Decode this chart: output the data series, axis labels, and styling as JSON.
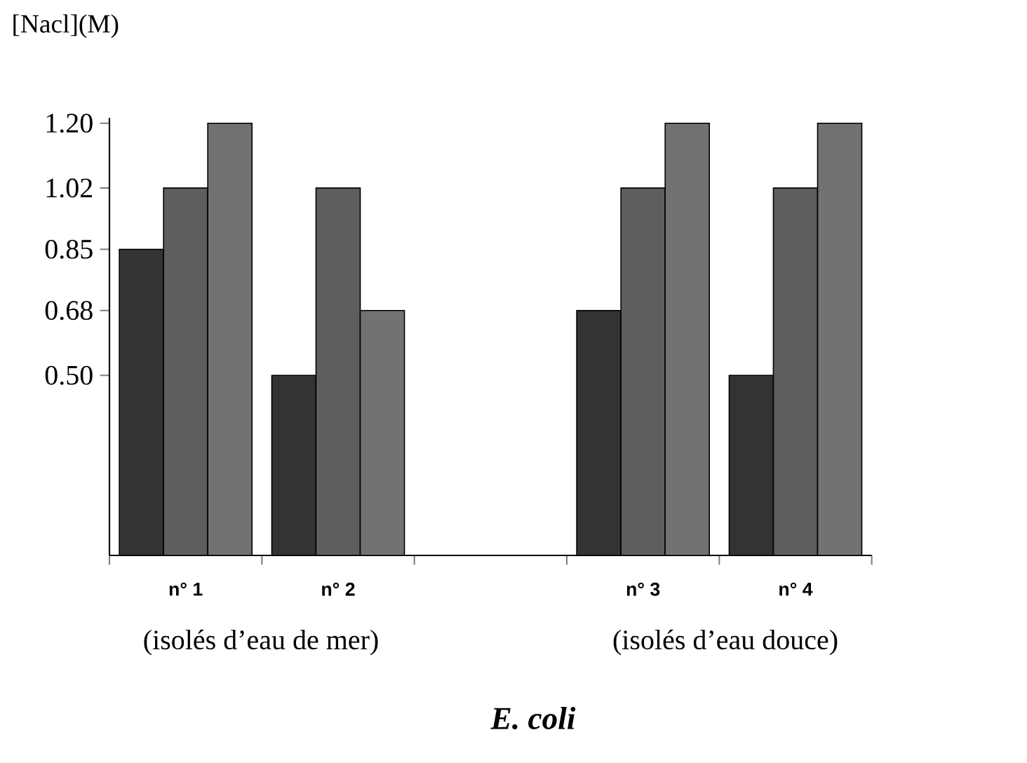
{
  "chart_data": {
    "type": "bar",
    "ylabel": "[Nacl](M)",
    "title": "E. coli",
    "annotations": [
      "(isolés d’eau de mer)",
      "(isolés d’eau douce)"
    ],
    "categories": [
      "n° 1",
      "n° 2",
      null,
      "n° 3",
      "n° 4"
    ],
    "series": [
      {
        "color": "#333333",
        "values": [
          0.85,
          0.5,
          null,
          0.68,
          0.5
        ]
      },
      {
        "color": "#5e5e5e",
        "values": [
          1.02,
          1.02,
          null,
          1.02,
          1.02
        ]
      },
      {
        "color": "#727272",
        "values": [
          1.2,
          0.68,
          null,
          1.2,
          1.2
        ]
      }
    ],
    "ylim": [
      0,
      1.215
    ],
    "yticks": [
      {
        "value": 0.5,
        "label": "0.50"
      },
      0.68,
      0.85,
      1.02,
      {
        "value": 1.2,
        "label": "1.20"
      }
    ]
  }
}
